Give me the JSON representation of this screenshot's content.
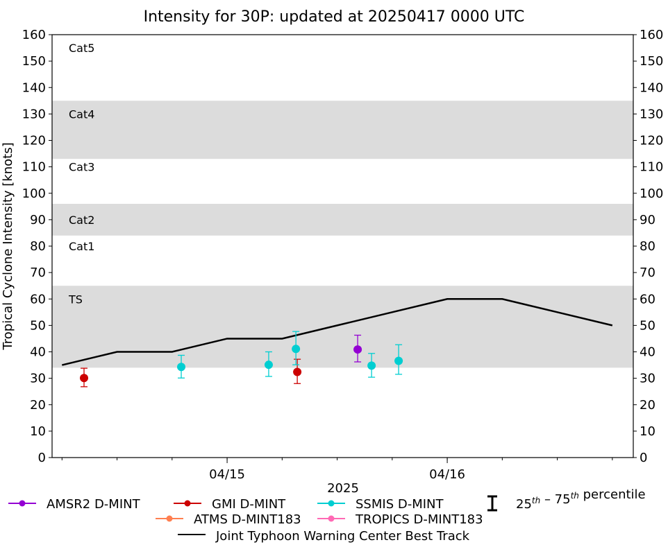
{
  "chart_data": {
    "type": "scatter",
    "title": "Intensity for 30P: updated at 20250417 0000 UTC",
    "xlabel": "2025",
    "ylabel": "Tropical Cyclone Intensity [knots]",
    "ylim": [
      0,
      160
    ],
    "yticks": [
      0,
      10,
      20,
      30,
      40,
      50,
      60,
      70,
      80,
      90,
      100,
      110,
      120,
      130,
      140,
      150,
      160
    ],
    "xlim": [
      "2025-04-14T04:55",
      "2025-04-16T20:17"
    ],
    "xticks": [
      {
        "t": "2025-04-15T00:00",
        "label": "04/15"
      },
      {
        "t": "2025-04-16T00:00",
        "label": "04/16"
      }
    ],
    "xminor_hours": 6,
    "grid": false,
    "categories": [
      {
        "label": "TS",
        "range": [
          34,
          65
        ],
        "shaded": true,
        "label_y": 60
      },
      {
        "label": "Cat1",
        "range": [
          65,
          84
        ],
        "shaded": false,
        "label_y": 80
      },
      {
        "label": "Cat2",
        "range": [
          84,
          96
        ],
        "shaded": true,
        "label_y": 90
      },
      {
        "label": "Cat3",
        "range": [
          96,
          113
        ],
        "shaded": false,
        "label_y": 110
      },
      {
        "label": "Cat4",
        "range": [
          113,
          135
        ],
        "shaded": true,
        "label_y": 130
      },
      {
        "label": "Cat5",
        "range": [
          135,
          160
        ],
        "shaded": false,
        "label_y": 155
      }
    ],
    "band_color": "#dcdcdc",
    "series": [
      {
        "name": "AMSR2 D-MINT",
        "color": "#9400d3",
        "points": [
          {
            "t": "2025-04-15T14:14",
            "y": 40.9,
            "lo": 36.2,
            "hi": 46.3
          }
        ]
      },
      {
        "name": "GMI D-MINT",
        "color": "#cc0000",
        "points": [
          {
            "t": "2025-04-14T08:24",
            "y": 30.1,
            "lo": 26.8,
            "hi": 33.8
          },
          {
            "t": "2025-04-15T07:39",
            "y": 32.4,
            "lo": 28.0,
            "hi": 37.2
          }
        ]
      },
      {
        "name": "SSMIS D-MINT",
        "color": "#00ced1",
        "points": [
          {
            "t": "2025-04-14T19:00",
            "y": 34.3,
            "lo": 30.1,
            "hi": 38.7
          },
          {
            "t": "2025-04-15T04:32",
            "y": 35.1,
            "lo": 30.7,
            "hi": 40.0
          },
          {
            "t": "2025-04-15T07:30",
            "y": 41.1,
            "lo": 35.1,
            "hi": 47.7
          },
          {
            "t": "2025-04-15T15:45",
            "y": 34.8,
            "lo": 30.4,
            "hi": 39.4
          },
          {
            "t": "2025-04-15T18:42",
            "y": 36.6,
            "lo": 31.5,
            "hi": 42.7
          }
        ]
      },
      {
        "name": "ATMS D-MINT183",
        "color": "#ff7f50",
        "points": []
      },
      {
        "name": "TROPICS D-MINT183",
        "color": "#ff69b4",
        "points": []
      }
    ],
    "best_track": {
      "name": "Joint Typhoon Warning Center Best Track",
      "color": "#000000",
      "points": [
        {
          "t": "2025-04-14T06:00",
          "y": 35
        },
        {
          "t": "2025-04-14T12:00",
          "y": 40
        },
        {
          "t": "2025-04-14T18:00",
          "y": 40
        },
        {
          "t": "2025-04-15T00:00",
          "y": 45
        },
        {
          "t": "2025-04-15T06:00",
          "y": 45
        },
        {
          "t": "2025-04-15T12:00",
          "y": 50
        },
        {
          "t": "2025-04-15T18:00",
          "y": 55
        },
        {
          "t": "2025-04-16T00:00",
          "y": 60
        },
        {
          "t": "2025-04-16T06:00",
          "y": 60
        },
        {
          "t": "2025-04-16T12:00",
          "y": 55
        },
        {
          "t": "2025-04-16T18:00",
          "y": 50
        }
      ]
    },
    "legend": {
      "placement": "bottom",
      "percentile_label": "25th – 75th percentile"
    }
  }
}
